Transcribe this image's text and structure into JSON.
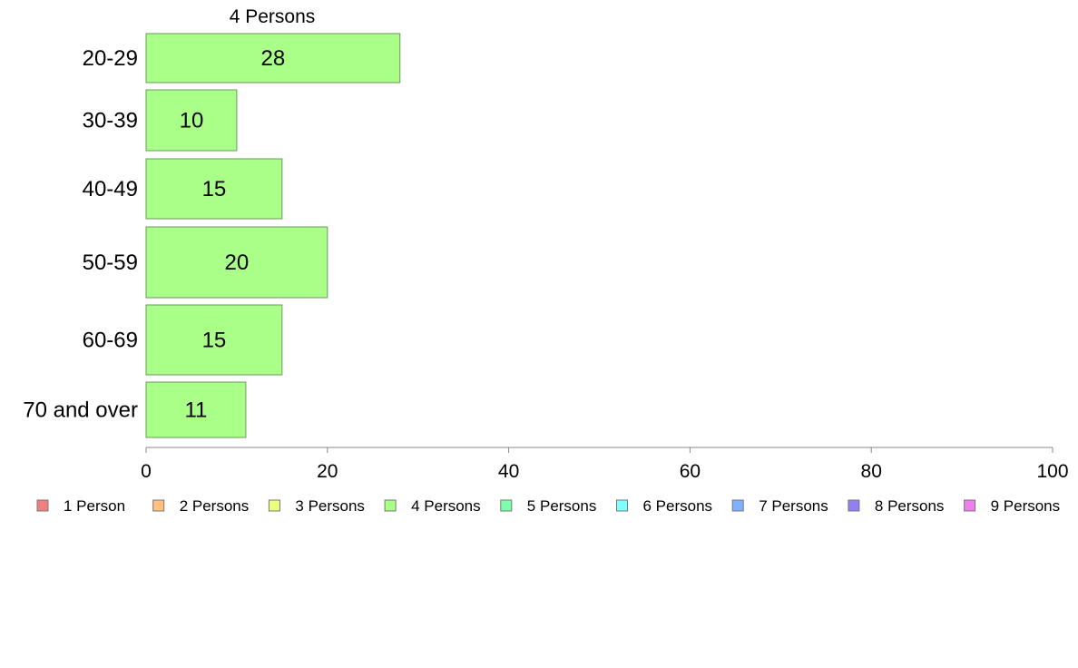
{
  "chart_data": {
    "type": "bar",
    "orientation": "horizontal",
    "title": "4 Persons",
    "xlabel": "",
    "ylabel": "",
    "categories": [
      "20-29",
      "30-39",
      "40-49",
      "50-59",
      "60-69",
      "70 and over"
    ],
    "series": [
      {
        "name": "4 Persons",
        "color": "#aaff88",
        "values": [
          28,
          10,
          15,
          20,
          15,
          11
        ]
      }
    ],
    "xlim": [
      0,
      100
    ],
    "xticks": [
      0,
      20,
      40,
      60,
      80,
      100
    ],
    "grid": false,
    "legend_position": "bottom",
    "legend": [
      {
        "label": "1 Person",
        "color": "#f08080"
      },
      {
        "label": "2 Persons",
        "color": "#ffc080"
      },
      {
        "label": "3 Persons",
        "color": "#eeff80"
      },
      {
        "label": "4 Persons",
        "color": "#aaff88"
      },
      {
        "label": "5 Persons",
        "color": "#80ffaa"
      },
      {
        "label": "6 Persons",
        "color": "#80ffff"
      },
      {
        "label": "7 Persons",
        "color": "#80b0ff"
      },
      {
        "label": "8 Persons",
        "color": "#9080f0"
      },
      {
        "label": "9 Persons",
        "color": "#ee80ee"
      }
    ]
  }
}
